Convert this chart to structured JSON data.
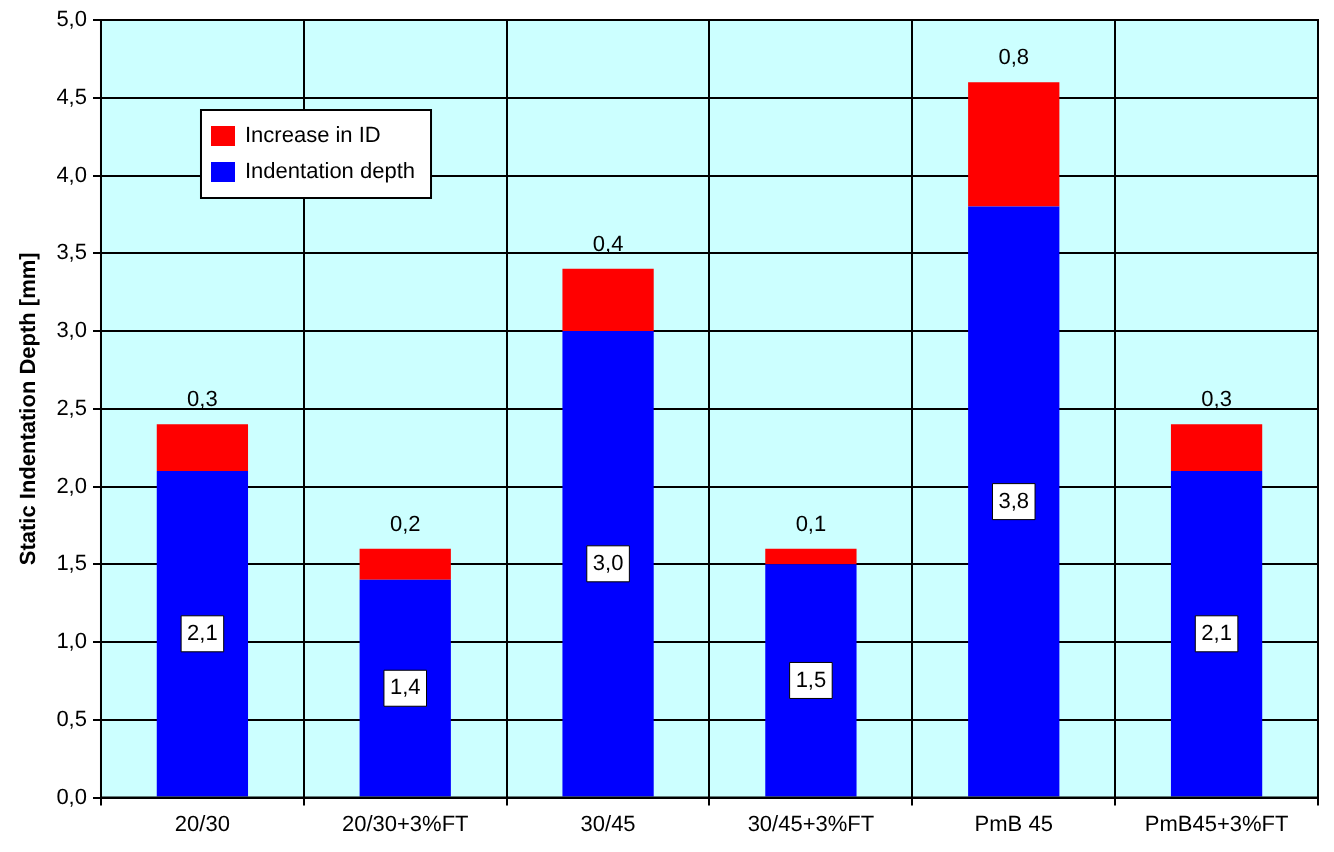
{
  "chart_data": {
    "type": "bar",
    "stacked": true,
    "ylabel": "Static Indentation Depth [mm]",
    "categories": [
      "20/30",
      "20/30+3%FT",
      "30/45",
      "30/45+3%FT",
      "PmB 45",
      "PmB45+3%FT"
    ],
    "series": [
      {
        "name": "Indentation depth",
        "color": "#0000ff",
        "values": [
          2.1,
          1.4,
          3.0,
          1.5,
          3.8,
          2.1
        ],
        "value_labels": [
          "2,1",
          "1,4",
          "3,0",
          "1,5",
          "3,8",
          "2,1"
        ]
      },
      {
        "name": "Increase in ID",
        "color": "#ff0000",
        "values": [
          0.3,
          0.2,
          0.4,
          0.1,
          0.8,
          0.3
        ],
        "value_labels": [
          "0,3",
          "0,2",
          "0,4",
          "0,1",
          "0,8",
          "0,3"
        ]
      }
    ],
    "ylim": [
      0,
      5
    ],
    "yticks": [
      {
        "value": 0,
        "label": "0,0"
      },
      {
        "value": 0.5,
        "label": "0,5"
      },
      {
        "value": 1,
        "label": "1,0"
      },
      {
        "value": 1.5,
        "label": "1,5"
      },
      {
        "value": 2,
        "label": "2,0"
      },
      {
        "value": 2.5,
        "label": "2,5"
      },
      {
        "value": 3,
        "label": "3,0"
      },
      {
        "value": 3.5,
        "label": "3,5"
      },
      {
        "value": 4,
        "label": "4,0"
      },
      {
        "value": 4.5,
        "label": "4,5"
      },
      {
        "value": 5,
        "label": "5,0"
      }
    ],
    "grid": true,
    "legend": "top left"
  }
}
